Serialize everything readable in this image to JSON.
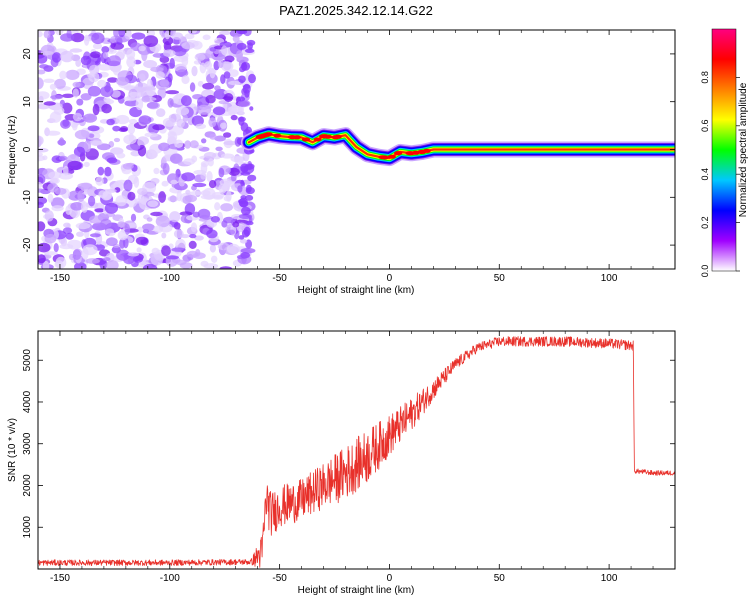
{
  "title": "PAZ1.2025.342.12.14.G22",
  "chart_data": [
    {
      "type": "heatmap",
      "name": "spectrogram",
      "xlabel": "Height of straight line (km)",
      "ylabel": "Frequency (Hz)",
      "xlim": [
        -160,
        130
      ],
      "ylim": [
        -25,
        25
      ],
      "x_ticks": [
        -150,
        -100,
        -50,
        0,
        50,
        100
      ],
      "y_ticks": [
        -20,
        -10,
        0,
        10,
        20
      ],
      "x_tick_labels": [
        "-150",
        "-100",
        "-50",
        "0",
        "50",
        "100"
      ],
      "y_tick_labels": [
        "-20",
        "-10",
        "0",
        "10",
        "20"
      ],
      "noise_region_x": [
        -160,
        -65
      ],
      "signal_trace": {
        "x": [
          -64,
          -60,
          -55,
          -50,
          -45,
          -40,
          -35,
          -30,
          -25,
          -20,
          -15,
          -10,
          -5,
          0,
          5,
          10,
          15,
          20,
          30,
          130
        ],
        "freq": [
          1.5,
          2.5,
          3.2,
          2.8,
          2.6,
          2.5,
          1.5,
          2.8,
          2.5,
          3.0,
          0.5,
          -1.0,
          -1.5,
          -1.8,
          -0.5,
          -0.8,
          -0.5,
          0.0,
          0.0,
          0.0
        ]
      },
      "colorbar": {
        "label": "Normalized spectral amplitude",
        "range": [
          0,
          1
        ],
        "ticks": [
          0.0,
          0.2,
          0.4,
          0.6,
          0.8
        ],
        "tick_labels": [
          "0.0",
          "0.2",
          "0.4",
          "0.6",
          "0.8"
        ],
        "colors": [
          "#ffffff",
          "#a000ff",
          "#0000ff",
          "#00c8ff",
          "#00ff00",
          "#ffff00",
          "#ff8000",
          "#ff0000",
          "#ff0080"
        ]
      }
    },
    {
      "type": "line",
      "name": "snr",
      "xlabel": "Height of straight line (km)",
      "ylabel": "SNR (10 * v/v)",
      "xlim": [
        -160,
        130
      ],
      "ylim": [
        0,
        5700
      ],
      "x_ticks": [
        -150,
        -100,
        -50,
        0,
        50,
        100
      ],
      "y_ticks": [
        1000,
        2000,
        3000,
        4000,
        5000
      ],
      "x_tick_labels": [
        "-150",
        "-100",
        "-50",
        "0",
        "50",
        "100"
      ],
      "y_tick_labels": [
        "1000",
        "2000",
        "3000",
        "4000",
        "5000"
      ],
      "color": "#e8302a",
      "series": [
        {
          "name": "SNR",
          "x": [
            -160,
            -100,
            -63,
            -58,
            -56,
            -54,
            -50,
            -40,
            -30,
            -20,
            -10,
            0,
            10,
            20,
            30,
            40,
            50,
            60,
            80,
            100,
            111,
            111.5,
            120,
            130
          ],
          "y": [
            150,
            150,
            170,
            400,
            1700,
            1300,
            1500,
            1650,
            2000,
            2300,
            2700,
            3200,
            3700,
            4300,
            4900,
            5300,
            5450,
            5450,
            5450,
            5400,
            5350,
            2350,
            2300,
            2300
          ],
          "noise": [
            70,
            70,
            70,
            450,
            550,
            550,
            500,
            500,
            550,
            650,
            650,
            500,
            400,
            250,
            150,
            120,
            120,
            120,
            120,
            120,
            120,
            60,
            60,
            60
          ]
        }
      ]
    }
  ],
  "colors": {
    "line": "#e8302a",
    "axis": "#000000",
    "background": "#ffffff"
  }
}
